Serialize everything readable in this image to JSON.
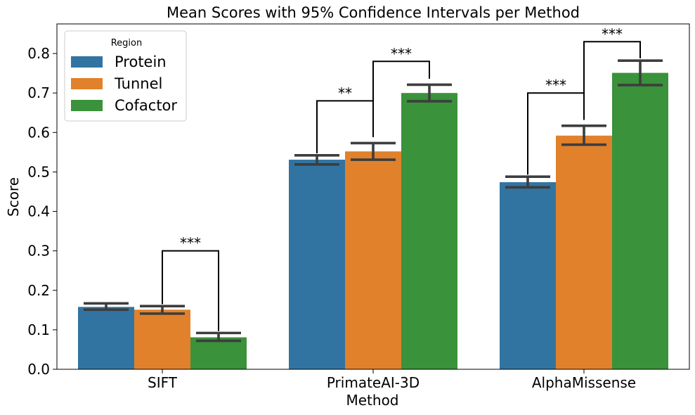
{
  "chart_data": {
    "type": "bar",
    "title": "Mean Scores with 95% Confidence Intervals per Method",
    "xlabel": "Method",
    "ylabel": "Score",
    "ylim": [
      0,
      0.875
    ],
    "yticks": [
      0.0,
      0.1,
      0.2,
      0.3,
      0.4,
      0.5,
      0.6,
      0.7,
      0.8
    ],
    "ytick_labels": [
      "0.0",
      "0.1",
      "0.2",
      "0.3",
      "0.4",
      "0.5",
      "0.6",
      "0.7",
      "0.8"
    ],
    "categories": [
      "SIFT",
      "PrimateAI-3D",
      "AlphaMissense"
    ],
    "grid": false,
    "legend": {
      "title": "Region",
      "placement": "top-left"
    },
    "series": [
      {
        "name": "Protein",
        "color": "#3274a1",
        "values": [
          0.158,
          0.531,
          0.474
        ],
        "ci_low": [
          0.151,
          0.519,
          0.461
        ],
        "ci_high": [
          0.167,
          0.542,
          0.488
        ]
      },
      {
        "name": "Tunnel",
        "color": "#e1812c",
        "values": [
          0.151,
          0.552,
          0.592
        ],
        "ci_low": [
          0.141,
          0.531,
          0.569
        ],
        "ci_high": [
          0.16,
          0.573,
          0.617
        ]
      },
      {
        "name": "Cofactor",
        "color": "#3a923a",
        "values": [
          0.081,
          0.7,
          0.751
        ],
        "ci_low": [
          0.072,
          0.679,
          0.72
        ],
        "ci_high": [
          0.092,
          0.721,
          0.782
        ]
      }
    ],
    "annotations": [
      {
        "category": "SIFT",
        "from": "Tunnel",
        "to": "Cofactor",
        "label": "***",
        "height": 0.3,
        "left_end": 0.165,
        "right_end": 0.097
      },
      {
        "category": "PrimateAI-3D",
        "from": "Protein",
        "to": "Tunnel",
        "label": "**",
        "height": 0.68,
        "left_end": 0.547,
        "right_end": 0.588
      },
      {
        "category": "PrimateAI-3D",
        "from": "Tunnel",
        "to": "Cofactor",
        "label": "***",
        "height": 0.78,
        "left_end": 0.588,
        "right_end": 0.736
      },
      {
        "category": "AlphaMissense",
        "from": "Protein",
        "to": "Tunnel",
        "label": "***",
        "height": 0.7,
        "left_end": 0.493,
        "right_end": 0.632
      },
      {
        "category": "AlphaMissense",
        "from": "Tunnel",
        "to": "Cofactor",
        "label": "***",
        "height": 0.83,
        "left_end": 0.632,
        "right_end": 0.788
      }
    ]
  }
}
